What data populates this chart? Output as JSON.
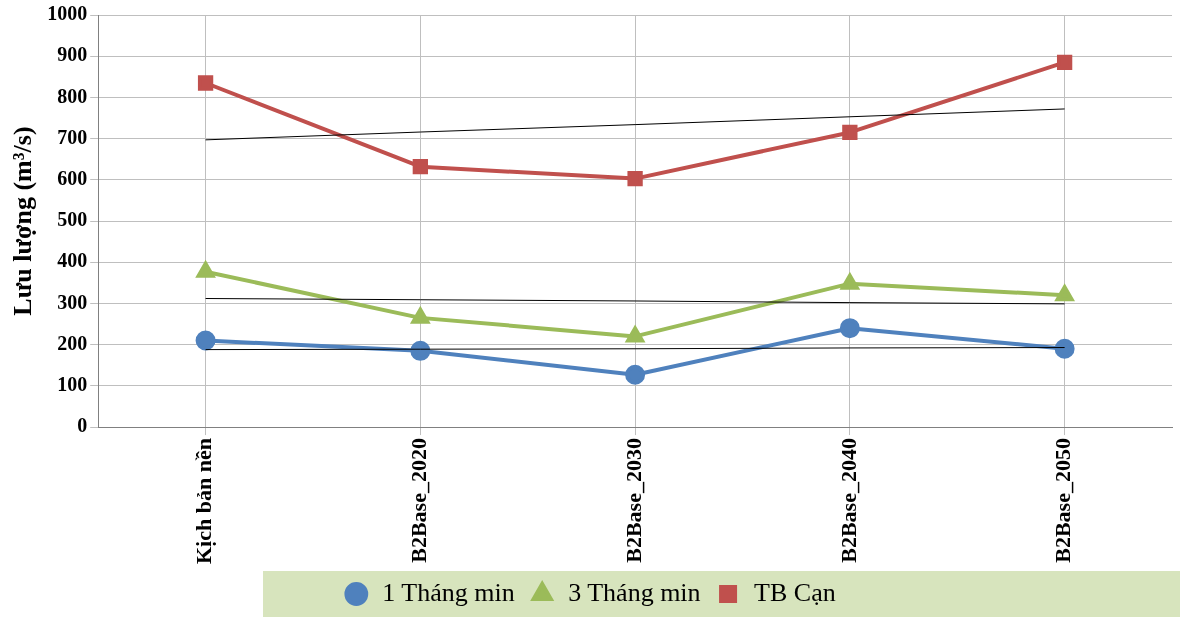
{
  "chart_data": {
    "type": "line",
    "ylabel": "Lưu lượng (m³/s)",
    "categories": [
      "Kịch bản nền",
      "B2Base_2020",
      "B2Base_2030",
      "B2Base_2040",
      "B2Base_2050"
    ],
    "series": [
      {
        "name": "1 Tháng min",
        "color": "#4f81bd",
        "marker": "circle",
        "values": [
          210,
          185,
          127,
          240,
          190
        ]
      },
      {
        "name": "3 Tháng min",
        "color": "#9bbb59",
        "marker": "triangle",
        "values": [
          377,
          265,
          220,
          348,
          320
        ]
      },
      {
        "name": "TB Cạn",
        "color": "#c0504d",
        "marker": "square",
        "values": [
          835,
          632,
          603,
          715,
          885
        ]
      },
      {
        "color": "#000000",
        "marker": "none",
        "values": [
          188,
          189,
          190,
          192,
          193
        ]
      },
      {
        "color": "#000000",
        "marker": "none",
        "values": [
          312,
          309,
          306,
          302,
          299
        ]
      },
      {
        "color": "#000000",
        "marker": "none",
        "values": [
          697,
          716,
          734,
          753,
          772
        ]
      }
    ],
    "ylim": [
      0,
      1000
    ],
    "yticks": [
      0,
      100,
      200,
      300,
      400,
      500,
      600,
      700,
      800,
      900,
      1000
    ],
    "grid": true,
    "legend": "bottom"
  }
}
